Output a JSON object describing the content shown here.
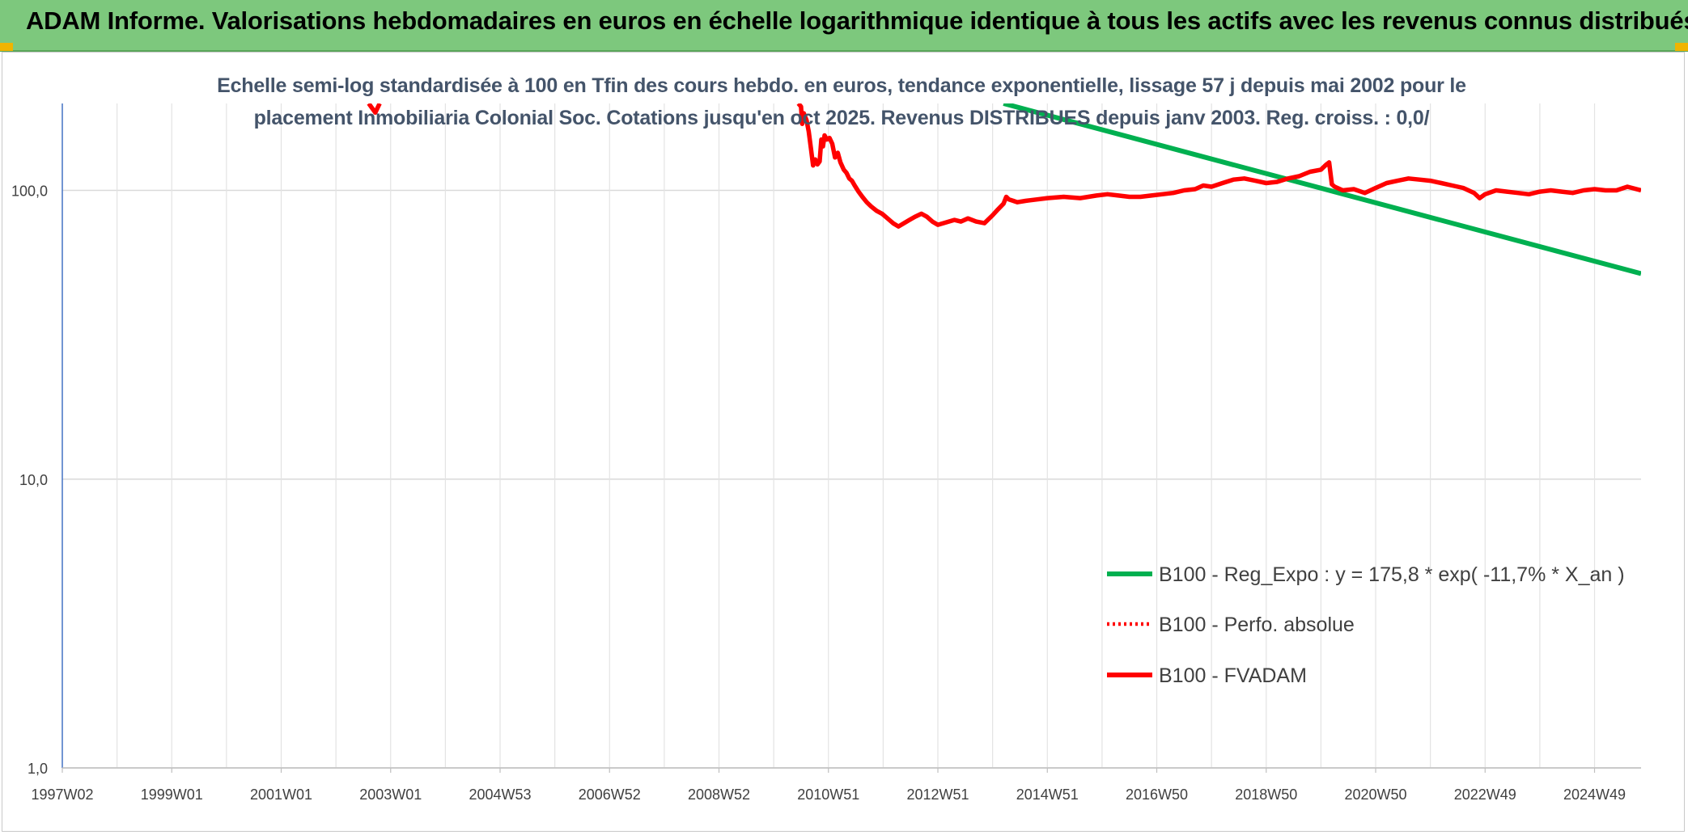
{
  "banner": {
    "title": "ADAM Informe. Valorisations hebdomadaires en euros en échelle logarithmique identique à tous les actifs avec les revenus connus distribués"
  },
  "colors": {
    "banner_bg": "#7dc87d",
    "series_trend": "#00b050",
    "series_price": "#ff0000",
    "accent_corner": "#f0b400"
  },
  "chart_data": {
    "type": "line",
    "title": "",
    "subtitle_lines": [
      "Echelle semi-log standardisée à 100 en Tfin des cours hebdo. en euros, tendance exponentielle, lissage 57 j depuis mai 2002 pour le",
      "placement Inmobiliaria Colonial Soc. Cotations jusqu'en oct 2025. Revenus DISTRIBUES depuis janv 2003. Reg. croiss. : 0,0/"
    ],
    "xlabel": "",
    "ylabel": "",
    "y_scale": "log",
    "ylim": [
      1,
      200
    ],
    "y_ticks": [
      {
        "value": 1,
        "label": "1,0"
      },
      {
        "value": 10,
        "label": "10,0"
      },
      {
        "value": 100,
        "label": "100,0"
      }
    ],
    "xlim": [
      1997.0,
      2025.85
    ],
    "x_ticks": [
      {
        "value": 1997.0,
        "label": "1997W02"
      },
      {
        "value": 1999.0,
        "label": "1999W01"
      },
      {
        "value": 2001.0,
        "label": "2001W01"
      },
      {
        "value": 2003.0,
        "label": "2003W01"
      },
      {
        "value": 2005.0,
        "label": "2004W53"
      },
      {
        "value": 2007.0,
        "label": "2006W52"
      },
      {
        "value": 2009.0,
        "label": "2008W52"
      },
      {
        "value": 2011.0,
        "label": "2010W51"
      },
      {
        "value": 2013.0,
        "label": "2012W51"
      },
      {
        "value": 2015.0,
        "label": "2014W51"
      },
      {
        "value": 2017.0,
        "label": "2016W50"
      },
      {
        "value": 2019.0,
        "label": "2018W50"
      },
      {
        "value": 2021.0,
        "label": "2020W50"
      },
      {
        "value": 2023.0,
        "label": "2022W49"
      },
      {
        "value": 2025.0,
        "label": "2024W49"
      }
    ],
    "x_minor_gridlines": [
      1998.0,
      2000.0,
      2002.0,
      2004.0,
      2006.0,
      2008.0,
      2010.0,
      2012.0,
      2014.0,
      2016.0,
      2018.0,
      2020.0,
      2022.0,
      2024.0
    ],
    "grid": true,
    "legend_position": "bottom-right",
    "series": [
      {
        "name": "B100 - Reg_Expo : y = 175,8 * exp( -11,7% *  X_an )",
        "style": "solid-green",
        "x": [
          2014.2,
          2025.85
        ],
        "y": [
          200,
          51.5
        ]
      },
      {
        "name": "B100 - Perfo. absolue",
        "style": "dotted-red",
        "x": [],
        "y": []
      },
      {
        "name": "B100 - FVADAM",
        "style": "solid-red",
        "segments": [
          {
            "x": [
              2002.6,
              2002.72,
              2002.8
            ],
            "y": [
              200,
              186,
              200
            ]
          },
          {
            "x": [
              2010.45,
              2010.5,
              2010.52,
              2010.55,
              2010.6,
              2010.64,
              2010.68,
              2010.72,
              2010.76,
              2010.8,
              2010.84,
              2010.87,
              2010.9,
              2010.93,
              2010.97,
              2011.02,
              2011.07,
              2011.12,
              2011.17,
              2011.22,
              2011.28,
              2011.33,
              2011.38,
              2011.43,
              2011.48,
              2011.55,
              2011.62,
              2011.7,
              2011.78,
              2011.88,
              2011.98,
              2012.08,
              2012.18,
              2012.28,
              2012.38,
              2012.48,
              2012.58,
              2012.7,
              2012.8,
              2012.9,
              2013.0,
              2013.1,
              2013.2,
              2013.3,
              2013.42,
              2013.55,
              2013.7,
              2013.85,
              2014.0,
              2014.1,
              2014.2,
              2014.25,
              2014.3,
              2014.38,
              2014.45,
              2014.6,
              2014.8,
              2015.0,
              2015.3,
              2015.6,
              2015.9,
              2016.1,
              2016.3,
              2016.5,
              2016.7,
              2016.9,
              2017.1,
              2017.3,
              2017.5,
              2017.7,
              2017.85,
              2018.0,
              2018.2,
              2018.4,
              2018.6,
              2018.8,
              2019.0,
              2019.2,
              2019.4,
              2019.6,
              2019.8,
              2020.0,
              2020.1,
              2020.15,
              2020.2,
              2020.25,
              2020.3,
              2020.4,
              2020.6,
              2020.8,
              2021.0,
              2021.1,
              2021.2,
              2021.4,
              2021.6,
              2021.8,
              2022.0,
              2022.2,
              2022.4,
              2022.6,
              2022.8,
              2022.9,
              2023.0,
              2023.2,
              2023.4,
              2023.6,
              2023.8,
              2024.0,
              2024.2,
              2024.4,
              2024.6,
              2024.8,
              2025.0,
              2025.2,
              2025.4,
              2025.6,
              2025.85
            ],
            "y": [
              200,
              195,
              170,
              185,
              175,
              160,
              140,
              122,
              128,
              123,
              126,
              150,
              142,
              155,
              150,
              152,
              145,
              130,
              135,
              125,
              118,
              115,
              110,
              108,
              104,
              99,
              95,
              91,
              88,
              85,
              83,
              80,
              77,
              75,
              77,
              79,
              81,
              83,
              81,
              78,
              76,
              77,
              78,
              79,
              78,
              80,
              78,
              77,
              82,
              86,
              90,
              95,
              93,
              92,
              91,
              92,
              93,
              94,
              95,
              94,
              96,
              97,
              96,
              95,
              95,
              96,
              97,
              98,
              100,
              101,
              104,
              103,
              106,
              109,
              110,
              108,
              106,
              107,
              110,
              112,
              116,
              118,
              123,
              125,
              105,
              103,
              102,
              100,
              101,
              98,
              102,
              104,
              106,
              108,
              110,
              109,
              108,
              106,
              104,
              102,
              98,
              94,
              97,
              100,
              99,
              98,
              97,
              99,
              100,
              99,
              98,
              100,
              101,
              100,
              100,
              103,
              100
            ]
          }
        ]
      }
    ]
  }
}
